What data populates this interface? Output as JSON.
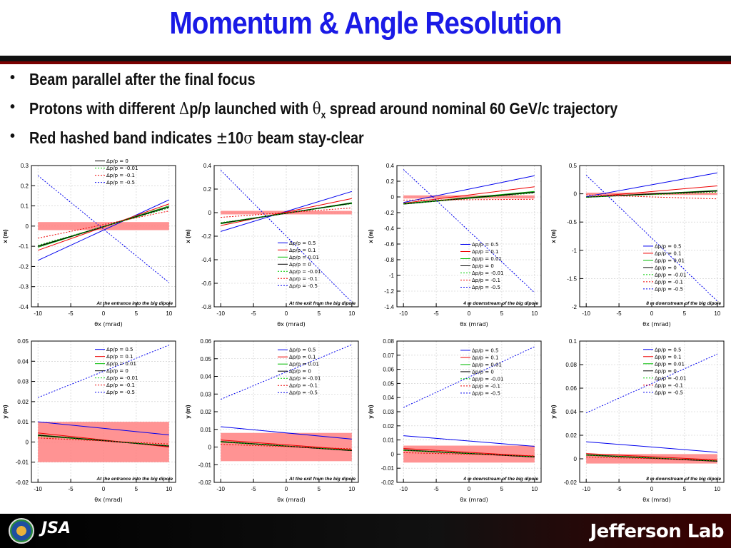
{
  "title": "Momentum & Angle Resolution",
  "bullets": [
    {
      "pre": "Beam parallel after the final focus"
    },
    {
      "pre": "Protons with different ",
      "sym1": "Δ",
      "mid": "p/p launched with ",
      "sym2": "θ",
      "sub": "x",
      "post": " spread around nominal 60 GeV/c trajectory"
    },
    {
      "pre": "Red hashed band indicates ",
      "sym1": "±",
      "mid": "10",
      "sym2": "σ",
      "post": " beam stay-clear"
    }
  ],
  "bullet_glyph": "•",
  "footer": {
    "left_logo_text": "JSA",
    "right_logo_text": "Jefferson Lab"
  },
  "colors": {
    "title": "#1a1ae6",
    "band": "#ff8080"
  },
  "chart_data": [
    {
      "type": "line",
      "xlabel": "θx (mrad)",
      "ylabel": "x (m)",
      "x": [
        -10,
        10
      ],
      "xticks": [
        -10,
        -5,
        0,
        5,
        10
      ],
      "ylim": [
        -0.4,
        0.3
      ],
      "yticks": [
        -0.4,
        -0.3,
        -0.2,
        -0.1,
        0,
        0.1,
        0.2,
        0.3
      ],
      "yticklabels": [
        "-0.4",
        "-0.3",
        "-0.2",
        "-0.1",
        "0",
        "0.1",
        "0.2",
        "0.3"
      ],
      "band": [
        -0.02,
        0.02
      ],
      "annotation": "At the entrance into the big dipole",
      "legend_top": 0.45,
      "series": [
        {
          "name": "Δp/p = 0.5",
          "values": [
            -0.17,
            0.13
          ],
          "color": "#0000ee",
          "dash": ""
        },
        {
          "name": "Δp/p = 0.1",
          "values": [
            -0.12,
            0.11
          ],
          "color": "#ee0000",
          "dash": ""
        },
        {
          "name": "Δp/p = 0.01",
          "values": [
            -0.105,
            0.1
          ],
          "color": "#00bb00",
          "dash": ""
        },
        {
          "name": "Δp/p = 0",
          "values": [
            -0.1,
            0.095
          ],
          "color": "#000000",
          "dash": ""
        },
        {
          "name": "Δp/p = -0.01",
          "values": [
            -0.095,
            0.09
          ],
          "color": "#00cc00",
          "dash": "2,2"
        },
        {
          "name": "Δp/p = -0.1",
          "values": [
            -0.06,
            0.075
          ],
          "color": "#ee0000",
          "dash": "2,2"
        },
        {
          "name": "Δp/p = -0.5",
          "values": [
            0.25,
            -0.28
          ],
          "color": "#0000ee",
          "dash": "2,2"
        }
      ]
    },
    {
      "type": "line",
      "xlabel": "θx (mrad)",
      "ylabel": "x (m)",
      "x": [
        -10,
        10
      ],
      "xticks": [
        -10,
        -5,
        0,
        5,
        10
      ],
      "ylim": [
        -0.8,
        0.4
      ],
      "yticks": [
        -0.8,
        -0.6,
        -0.4,
        -0.2,
        0,
        0.2,
        0.4
      ],
      "yticklabels": [
        "-0.8",
        "-0.6",
        "-0.4",
        "-0.2",
        "0",
        "0.2",
        "0.4"
      ],
      "band": [
        -0.015,
        0.015
      ],
      "annotation": "At the exit from the big dipole",
      "legend_top": -0.22,
      "series": [
        {
          "name": "Δp/p = 0.5",
          "values": [
            -0.16,
            0.18
          ],
          "color": "#0000ee",
          "dash": ""
        },
        {
          "name": "Δp/p = 0.1",
          "values": [
            -0.11,
            0.12
          ],
          "color": "#ee0000",
          "dash": ""
        },
        {
          "name": "Δp/p = 0.01",
          "values": [
            -0.095,
            0.085
          ],
          "color": "#00bb00",
          "dash": ""
        },
        {
          "name": "Δp/p = 0",
          "values": [
            -0.09,
            0.08
          ],
          "color": "#000000",
          "dash": ""
        },
        {
          "name": "Δp/p = -0.01",
          "values": [
            -0.085,
            0.075
          ],
          "color": "#00cc00",
          "dash": "2,2"
        },
        {
          "name": "Δp/p = -0.1",
          "values": [
            -0.04,
            0.04
          ],
          "color": "#ee0000",
          "dash": "2,2"
        },
        {
          "name": "Δp/p = -0.5",
          "values": [
            0.36,
            -0.76
          ],
          "color": "#0000ee",
          "dash": "2,2"
        }
      ]
    },
    {
      "type": "line",
      "xlabel": "θx (mrad)",
      "ylabel": "x (m)",
      "x": [
        -10,
        10
      ],
      "xticks": [
        -10,
        -5,
        0,
        5,
        10
      ],
      "ylim": [
        -1.4,
        0.4
      ],
      "yticks": [
        -1.4,
        -1.2,
        -1.0,
        -0.8,
        -0.6,
        -0.4,
        -0.2,
        0,
        0.2,
        0.4
      ],
      "yticklabels": [
        "-1.4",
        "-1.2",
        "-1",
        "-0.8",
        "-0.6",
        "-0.4",
        "-0.2",
        "0",
        "0.2",
        "0.4"
      ],
      "band": [
        -0.02,
        0.02
      ],
      "annotation": "4 m downstream of the big dipole",
      "legend_top": -0.55,
      "series": [
        {
          "name": "Δp/p = 0.5",
          "values": [
            -0.07,
            0.27
          ],
          "color": "#0000ee",
          "dash": ""
        },
        {
          "name": "Δp/p = 0.1",
          "values": [
            -0.08,
            0.13
          ],
          "color": "#ee0000",
          "dash": ""
        },
        {
          "name": "Δp/p = 0.01",
          "values": [
            -0.085,
            0.07
          ],
          "color": "#00bb00",
          "dash": ""
        },
        {
          "name": "Δp/p = 0",
          "values": [
            -0.09,
            0.06
          ],
          "color": "#000000",
          "dash": ""
        },
        {
          "name": "Δp/p = -0.01",
          "values": [
            -0.09,
            0.05
          ],
          "color": "#00cc00",
          "dash": "2,2"
        },
        {
          "name": "Δp/p = -0.1",
          "values": [
            -0.04,
            -0.03
          ],
          "color": "#ee0000",
          "dash": "2,2"
        },
        {
          "name": "Δp/p = -0.5",
          "values": [
            0.35,
            -1.22
          ],
          "color": "#0000ee",
          "dash": "2,2"
        }
      ]
    },
    {
      "type": "line",
      "xlabel": "θx (mrad)",
      "ylabel": "x (m)",
      "x": [
        -10,
        10
      ],
      "xticks": [
        -10,
        -5,
        0,
        5,
        10
      ],
      "ylim": [
        -2.0,
        0.5
      ],
      "yticks": [
        -2.0,
        -1.5,
        -1.0,
        -0.5,
        0,
        0.5
      ],
      "yticklabels": [
        "-2",
        "-1.5",
        "-1",
        "-0.5",
        "0",
        "0.5"
      ],
      "band": [
        -0.02,
        0.02
      ],
      "annotation": "8 m downstream of the big dipole",
      "legend_top": -0.85,
      "series": [
        {
          "name": "Δp/p = 0.5",
          "values": [
            -0.05,
            0.37
          ],
          "color": "#0000ee",
          "dash": ""
        },
        {
          "name": "Δp/p = 0.1",
          "values": [
            -0.06,
            0.14
          ],
          "color": "#ee0000",
          "dash": ""
        },
        {
          "name": "Δp/p = 0.01",
          "values": [
            -0.06,
            0.06
          ],
          "color": "#00bb00",
          "dash": ""
        },
        {
          "name": "Δp/p = 0",
          "values": [
            -0.06,
            0.05
          ],
          "color": "#000000",
          "dash": ""
        },
        {
          "name": "Δp/p = -0.01",
          "values": [
            -0.06,
            0.03
          ],
          "color": "#00cc00",
          "dash": "2,2"
        },
        {
          "name": "Δp/p = -0.1",
          "values": [
            -0.02,
            -0.09
          ],
          "color": "#ee0000",
          "dash": "2,2"
        },
        {
          "name": "Δp/p = -0.5",
          "values": [
            0.33,
            -1.9
          ],
          "color": "#0000ee",
          "dash": "2,2"
        }
      ]
    },
    {
      "type": "line",
      "xlabel": "θx (mrad)",
      "ylabel": "y (m)",
      "x": [
        -10,
        10
      ],
      "xticks": [
        -10,
        -5,
        0,
        5,
        10
      ],
      "ylim": [
        -0.02,
        0.05
      ],
      "yticks": [
        -0.02,
        -0.01,
        0,
        0.01,
        0.02,
        0.03,
        0.04,
        0.05
      ],
      "yticklabels": [
        "-0.02",
        "-0.01",
        "0",
        "0.01",
        "0.02",
        "0.03",
        "0.04",
        "0.05"
      ],
      "band": [
        -0.01,
        0.01
      ],
      "annotation": "At the entrance into the big dipole",
      "legend_top": 0.048,
      "series": [
        {
          "name": "Δp/p = 0.5",
          "values": [
            0.01,
            0.0035
          ],
          "color": "#0000ee",
          "dash": ""
        },
        {
          "name": "Δp/p = 0.1",
          "values": [
            0.0045,
            -0.0025
          ],
          "color": "#ee0000",
          "dash": ""
        },
        {
          "name": "Δp/p = 0.01",
          "values": [
            0.0035,
            -0.002
          ],
          "color": "#00bb00",
          "dash": ""
        },
        {
          "name": "Δp/p = 0",
          "values": [
            0.0033,
            -0.002
          ],
          "color": "#000000",
          "dash": ""
        },
        {
          "name": "Δp/p = -0.01",
          "values": [
            0.003,
            -0.0018
          ],
          "color": "#00cc00",
          "dash": "2,2"
        },
        {
          "name": "Δp/p = -0.1",
          "values": [
            0.002,
            -0.001
          ],
          "color": "#ee0000",
          "dash": "2,2"
        },
        {
          "name": "Δp/p = -0.5",
          "values": [
            0.022,
            0.048
          ],
          "color": "#0000ee",
          "dash": "2,2"
        }
      ]
    },
    {
      "type": "line",
      "xlabel": "θx (mrad)",
      "ylabel": "y (m)",
      "x": [
        -10,
        10
      ],
      "xticks": [
        -10,
        -5,
        0,
        5,
        10
      ],
      "ylim": [
        -0.02,
        0.06
      ],
      "yticks": [
        -0.02,
        -0.01,
        0,
        0.01,
        0.02,
        0.03,
        0.04,
        0.05,
        0.06
      ],
      "yticklabels": [
        "-0.02",
        "-0.01",
        "0",
        "0.01",
        "0.02",
        "0.03",
        "0.04",
        "0.05",
        "0.06"
      ],
      "band": [
        -0.008,
        0.008
      ],
      "annotation": "At the exit from the big dipole",
      "legend_top": 0.0575,
      "series": [
        {
          "name": "Δp/p = 0.5",
          "values": [
            0.0115,
            0.0045
          ],
          "color": "#0000ee",
          "dash": ""
        },
        {
          "name": "Δp/p = 0.1",
          "values": [
            0.004,
            -0.0015
          ],
          "color": "#ee0000",
          "dash": ""
        },
        {
          "name": "Δp/p = 0.01",
          "values": [
            0.0032,
            -0.002
          ],
          "color": "#00bb00",
          "dash": ""
        },
        {
          "name": "Δp/p = 0",
          "values": [
            0.003,
            -0.002
          ],
          "color": "#000000",
          "dash": ""
        },
        {
          "name": "Δp/p = -0.01",
          "values": [
            0.0028,
            -0.0018
          ],
          "color": "#00cc00",
          "dash": "2,2"
        },
        {
          "name": "Δp/p = -0.1",
          "values": [
            0.0015,
            -0.001
          ],
          "color": "#ee0000",
          "dash": "2,2"
        },
        {
          "name": "Δp/p = -0.5",
          "values": [
            0.027,
            0.058
          ],
          "color": "#0000ee",
          "dash": "2,2"
        }
      ]
    },
    {
      "type": "line",
      "xlabel": "θx (mrad)",
      "ylabel": "y (m)",
      "x": [
        -10,
        10
      ],
      "xticks": [
        -10,
        -5,
        0,
        5,
        10
      ],
      "ylim": [
        -0.02,
        0.08
      ],
      "yticks": [
        -0.02,
        -0.01,
        0,
        0.01,
        0.02,
        0.03,
        0.04,
        0.05,
        0.06,
        0.07,
        0.08
      ],
      "yticklabels": [
        "-0.02",
        "-0.01",
        "0",
        "0.01",
        "0.02",
        "0.03",
        "0.04",
        "0.05",
        "0.06",
        "0.07",
        "0.08"
      ],
      "band": [
        -0.006,
        0.006
      ],
      "annotation": "4 m downstream of the big dipole",
      "legend_top": 0.0765,
      "series": [
        {
          "name": "Δp/p = 0.5",
          "values": [
            0.013,
            0.0055
          ],
          "color": "#0000ee",
          "dash": ""
        },
        {
          "name": "Δp/p = 0.1",
          "values": [
            0.004,
            -0.0015
          ],
          "color": "#ee0000",
          "dash": ""
        },
        {
          "name": "Δp/p = 0.01",
          "values": [
            0.003,
            -0.002
          ],
          "color": "#00bb00",
          "dash": ""
        },
        {
          "name": "Δp/p = 0",
          "values": [
            0.0028,
            -0.002
          ],
          "color": "#000000",
          "dash": ""
        },
        {
          "name": "Δp/p = -0.01",
          "values": [
            0.0026,
            -0.0018
          ],
          "color": "#00cc00",
          "dash": "2,2"
        },
        {
          "name": "Δp/p = -0.1",
          "values": [
            0.001,
            -0.0012
          ],
          "color": "#ee0000",
          "dash": "2,2"
        },
        {
          "name": "Δp/p = -0.5",
          "values": [
            0.033,
            0.076
          ],
          "color": "#0000ee",
          "dash": "2,2"
        }
      ]
    },
    {
      "type": "line",
      "xlabel": "θx (mrad)",
      "ylabel": "y (m)",
      "x": [
        -10,
        10
      ],
      "xticks": [
        -10,
        -5,
        0,
        5,
        10
      ],
      "ylim": [
        -0.02,
        0.1
      ],
      "yticks": [
        -0.02,
        0,
        0.02,
        0.04,
        0.06,
        0.08,
        0.1
      ],
      "yticklabels": [
        "-0.02",
        "0",
        "0.02",
        "0.04",
        "0.06",
        "0.08",
        "0.1"
      ],
      "band": [
        -0.004,
        0.004
      ],
      "annotation": "8 m downstream of the big dipole",
      "legend_top": 0.0965,
      "series": [
        {
          "name": "Δp/p = 0.5",
          "values": [
            0.0145,
            0.0055
          ],
          "color": "#0000ee",
          "dash": ""
        },
        {
          "name": "Δp/p = 0.1",
          "values": [
            0.0045,
            -0.001
          ],
          "color": "#ee0000",
          "dash": ""
        },
        {
          "name": "Δp/p = 0.01",
          "values": [
            0.0035,
            -0.0018
          ],
          "color": "#00bb00",
          "dash": ""
        },
        {
          "name": "Δp/p = 0",
          "values": [
            0.0032,
            -0.002
          ],
          "color": "#000000",
          "dash": ""
        },
        {
          "name": "Δp/p = -0.01",
          "values": [
            0.003,
            -0.0018
          ],
          "color": "#00cc00",
          "dash": "2,2"
        },
        {
          "name": "Δp/p = -0.1",
          "values": [
            0.0015,
            -0.0012
          ],
          "color": "#ee0000",
          "dash": "2,2"
        },
        {
          "name": "Δp/p = -0.5",
          "values": [
            0.039,
            0.089
          ],
          "color": "#0000ee",
          "dash": "2,2"
        }
      ]
    }
  ]
}
